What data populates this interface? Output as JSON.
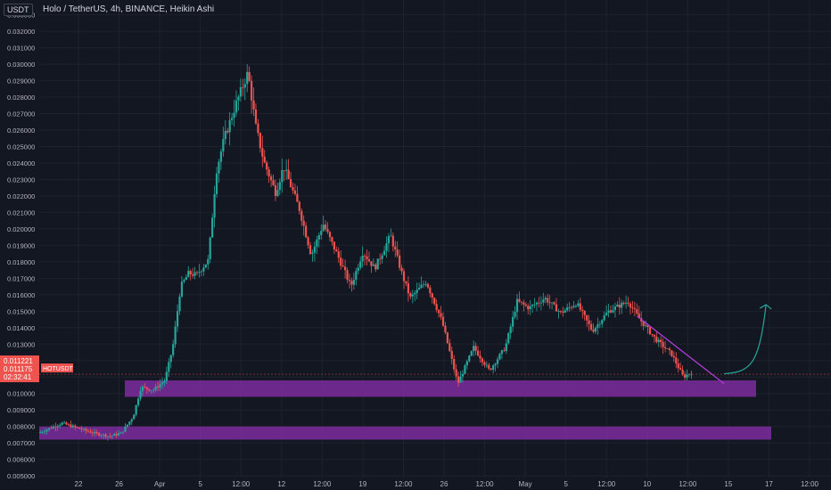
{
  "header": {
    "symbol_title": "Holo / TetherUS, 4h, BINANCE, Heikin Ashi",
    "currency_badge": "USDT"
  },
  "colors": {
    "background": "#131722",
    "grid": "#1e222d",
    "up": "#26a69a",
    "down": "#ef5350",
    "zone": "#7e2c9e",
    "trendline": "#b23bd6",
    "projection_arrow": "#26a69a",
    "price_tag": "#ef5350",
    "axis_text": "#b2b5be"
  },
  "price_tags": {
    "last_price": "0.011221",
    "current_price": "0.011175",
    "countdown": "02:32:41",
    "symbol": "HOTUSDT"
  },
  "chart_data": {
    "type": "candlestick",
    "style": "Heikin Ashi",
    "title": "Holo / TetherUS, 4h, BINANCE, Heikin Ashi",
    "ylim": [
      0.0049,
      0.0339
    ],
    "y_ticks": [
      "0.033000",
      "0.032000",
      "0.031000",
      "0.030000",
      "0.029000",
      "0.028000",
      "0.027000",
      "0.026000",
      "0.025000",
      "0.024000",
      "0.023000",
      "0.022000",
      "0.021000",
      "0.020000",
      "0.019000",
      "0.018000",
      "0.017000",
      "0.016000",
      "0.015000",
      "0.014000",
      "0.013000",
      "0.012000",
      "0.011000",
      "0.010000",
      "0.009000",
      "0.008000",
      "0.007000",
      "0.006000",
      "0.005000"
    ],
    "x_ticks": [
      "22",
      "26",
      "Apr",
      "5",
      "12:00",
      "12",
      "12:00",
      "19",
      "12:00",
      "26",
      "12:00",
      "May",
      "5",
      "12:00",
      "10",
      "12:00",
      "15",
      "17",
      "12:00"
    ],
    "price_path": [
      {
        "x": 0.0,
        "p": 0.0076
      },
      {
        "x": 0.03,
        "p": 0.0082
      },
      {
        "x": 0.05,
        "p": 0.0079
      },
      {
        "x": 0.07,
        "p": 0.0076
      },
      {
        "x": 0.09,
        "p": 0.0074
      },
      {
        "x": 0.105,
        "p": 0.0076
      },
      {
        "x": 0.12,
        "p": 0.0086
      },
      {
        "x": 0.13,
        "p": 0.0104
      },
      {
        "x": 0.145,
        "p": 0.0102
      },
      {
        "x": 0.16,
        "p": 0.0108
      },
      {
        "x": 0.17,
        "p": 0.0128
      },
      {
        "x": 0.18,
        "p": 0.0165
      },
      {
        "x": 0.19,
        "p": 0.0173
      },
      {
        "x": 0.2,
        "p": 0.0172
      },
      {
        "x": 0.215,
        "p": 0.0181
      },
      {
        "x": 0.225,
        "p": 0.0235
      },
      {
        "x": 0.235,
        "p": 0.0255
      },
      {
        "x": 0.25,
        "p": 0.0276
      },
      {
        "x": 0.265,
        "p": 0.0295
      },
      {
        "x": 0.275,
        "p": 0.0262
      },
      {
        "x": 0.285,
        "p": 0.0241
      },
      {
        "x": 0.3,
        "p": 0.0222
      },
      {
        "x": 0.31,
        "p": 0.0238
      },
      {
        "x": 0.33,
        "p": 0.0212
      },
      {
        "x": 0.345,
        "p": 0.0184
      },
      {
        "x": 0.36,
        "p": 0.0203
      },
      {
        "x": 0.38,
        "p": 0.0182
      },
      {
        "x": 0.395,
        "p": 0.0165
      },
      {
        "x": 0.41,
        "p": 0.0186
      },
      {
        "x": 0.425,
        "p": 0.0176
      },
      {
        "x": 0.445,
        "p": 0.0196
      },
      {
        "x": 0.46,
        "p": 0.0172
      },
      {
        "x": 0.47,
        "p": 0.0158
      },
      {
        "x": 0.49,
        "p": 0.0168
      },
      {
        "x": 0.51,
        "p": 0.0144
      },
      {
        "x": 0.53,
        "p": 0.0106
      },
      {
        "x": 0.55,
        "p": 0.0128
      },
      {
        "x": 0.57,
        "p": 0.0114
      },
      {
        "x": 0.59,
        "p": 0.0128
      },
      {
        "x": 0.605,
        "p": 0.0156
      },
      {
        "x": 0.62,
        "p": 0.0152
      },
      {
        "x": 0.64,
        "p": 0.0158
      },
      {
        "x": 0.66,
        "p": 0.0149
      },
      {
        "x": 0.68,
        "p": 0.0155
      },
      {
        "x": 0.7,
        "p": 0.0138
      },
      {
        "x": 0.72,
        "p": 0.015
      },
      {
        "x": 0.745,
        "p": 0.0156
      },
      {
        "x": 0.76,
        "p": 0.0145
      },
      {
        "x": 0.78,
        "p": 0.0133
      },
      {
        "x": 0.8,
        "p": 0.0124
      },
      {
        "x": 0.815,
        "p": 0.011
      },
      {
        "x": 0.825,
        "p": 0.0113
      }
    ],
    "support_zones": [
      {
        "name": "upper support zone",
        "low": 0.0098,
        "high": 0.0108
      },
      {
        "name": "lower support zone",
        "low": 0.0072,
        "high": 0.008
      }
    ],
    "trendline": {
      "from": {
        "x": 0.755,
        "p": 0.0147
      },
      "to": {
        "x": 0.865,
        "p": 0.0106
      }
    },
    "projection_arrow": {
      "from_p": 0.0112,
      "to_p": 0.0154
    }
  }
}
